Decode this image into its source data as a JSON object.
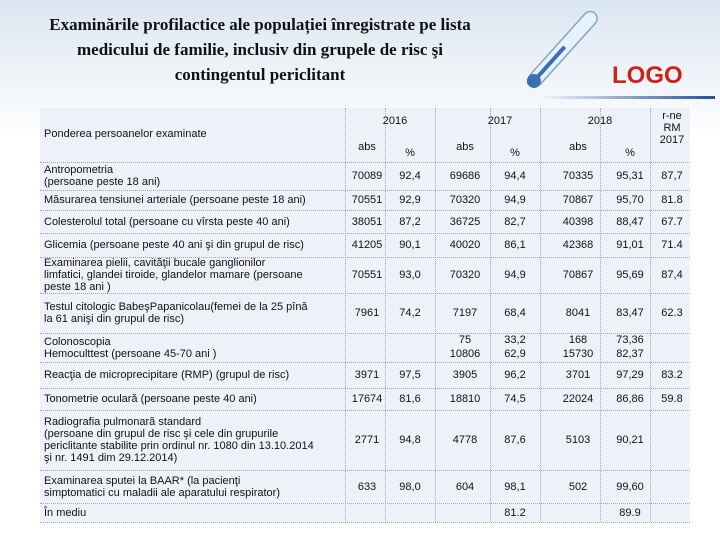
{
  "header": {
    "title": [
      "Examinările profilactice ale populației înregistrate pe lista",
      "medicului de familie, inclusiv din grupele de risc şi",
      "contingentul periclitant"
    ],
    "logo": "LOGO"
  },
  "table": {
    "corner": "Ponderea persoanelor examinate",
    "years": [
      "2016",
      "2017",
      "2018"
    ],
    "subheaders": [
      "abs",
      "%",
      "abs",
      "%",
      "abs",
      "%"
    ],
    "last_header": [
      "r-ne",
      "RM",
      "2017"
    ],
    "rows": [
      {
        "label": [
          "Antropometria",
          "   (persoane peste 18 ani)"
        ],
        "cells": [
          "70089",
          "92,4",
          "69686",
          "94,4",
          "70335",
          "95,31",
          "87,7"
        ]
      },
      {
        "label": [
          "   Măsurarea tensiunei arteriale (persoane peste 18 ani)"
        ],
        "cells": [
          "70551",
          "92,9",
          "70320",
          "94,9",
          "70867",
          "95,70",
          "81.8"
        ]
      },
      {
        "label": [
          "   Colesterolul total (persoane cu vîrsta peste 40 ani)"
        ],
        "cells": [
          "38051",
          "87,2",
          "36725",
          "82,7",
          "40398",
          "88,47",
          "67.7"
        ]
      },
      {
        "label": [
          "   Glicemia (persoane peste 40 ani şi din grupul de risc)"
        ],
        "cells": [
          "41205",
          "90,1",
          "40020",
          "86,1",
          "42368",
          "91,01",
          "71.4"
        ]
      },
      {
        "label": [
          "   Examinarea pielii, cavităţii bucale  ganglionilor",
          "limfatici, glandei tiroide, glandelor mamare (persoane",
          "peste 18 ani )"
        ],
        "cells": [
          "70551",
          "93,0",
          "70320",
          "94,9",
          "70867",
          "95,69",
          "87,4"
        ]
      },
      {
        "label": [
          "   Testul citologic BabeşPapanicolau(femei de la 25 pînă",
          "la 61 anişi din grupul de risc)"
        ],
        "cells": [
          "7961",
          "74,2",
          "7197",
          "68,4",
          "8041",
          "83,47",
          "62.3"
        ]
      },
      {
        "label": [
          "   Colonoscopia",
          "   Hemoculttest (persoane  45-70 ani )"
        ],
        "cells": [
          null,
          null,
          [
            "75",
            "10806"
          ],
          [
            "33,2",
            "62,9"
          ],
          [
            "168",
            "15730"
          ],
          [
            "73,36",
            "82,37"
          ],
          null
        ]
      },
      {
        "label": [
          "   Reacţia de microprecipitare (RMP)  (grupul de risc)"
        ],
        "cells": [
          "3971",
          "97,5",
          "3905",
          "96,2",
          "3701",
          "97,29",
          "83.2"
        ]
      },
      {
        "label": [
          "   Tonometrie oculară (persoane peste 40 ani)"
        ],
        "cells": [
          "17674",
          "81,6",
          "18810",
          "74,5",
          "22024",
          "86,86",
          "59.8"
        ]
      },
      {
        "label": [
          "   Radiografia pulmonară standard",
          "(persoane din grupul de risc şi  cele din grupurile",
          "periclitante  stabilite prin ordinul nr. 1080 din 13.10.2014",
          "şi nr. 1491 dim 29.12.2014)"
        ],
        "cells": [
          "2771",
          "94,8",
          "4778",
          "87,6",
          "5103",
          "90,21",
          null
        ]
      },
      {
        "label": [
          "   Examinarea sputei la BAAR*  (la pacienţi",
          "simptomatici  cu maladii ale aparatului respirator)"
        ],
        "cells": [
          "633",
          "98,0",
          "604",
          "98,1",
          "502",
          "99,60",
          null
        ]
      },
      {
        "label": [
          "   În mediu"
        ],
        "cells": [
          null,
          null,
          null,
          "81.2",
          null,
          "89.9",
          null
        ]
      }
    ]
  }
}
